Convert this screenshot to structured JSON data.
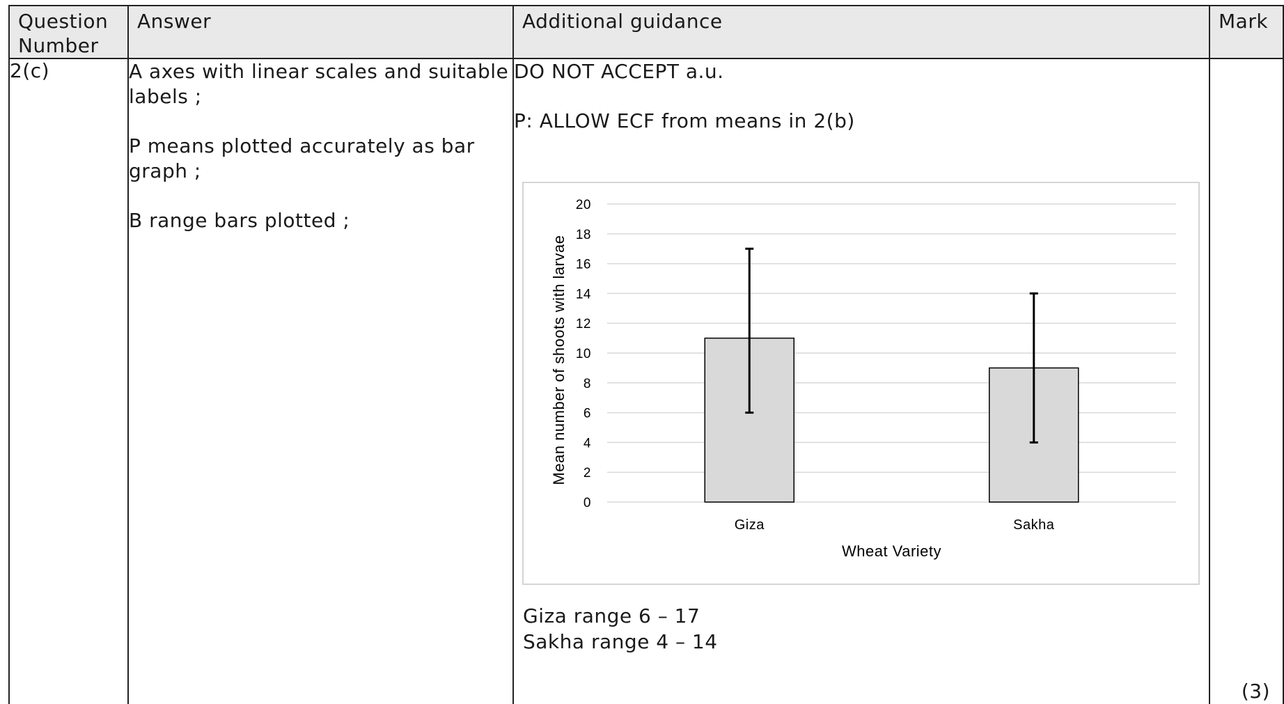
{
  "headers": {
    "question_number": "Question Number",
    "answer": "Answer",
    "guidance": "Additional guidance",
    "mark": "Mark"
  },
  "row": {
    "question_number": "2(c)",
    "answer_points": [
      "A  axes with linear scales and suitable labels ;",
      "P  means plotted accurately as bar graph ;",
      "B  range bars plotted ;"
    ],
    "guidance_1": "DO NOT ACCEPT a.u.",
    "guidance_2": "P: ALLOW ECF from means in 2(b)",
    "range_giza": "Giza range 6 – 17",
    "range_sakha": "Sakha range 4 – 14",
    "mark": "(3)"
  },
  "chart_data": {
    "type": "bar",
    "categories": [
      "Giza",
      "Sakha"
    ],
    "values": [
      11,
      9
    ],
    "error_bars": [
      {
        "low": 6,
        "high": 17
      },
      {
        "low": 4,
        "high": 14
      }
    ],
    "title": "",
    "xlabel": "Wheat Variety",
    "ylabel": "Mean number of shoots with larvae",
    "ylim": [
      0,
      20
    ],
    "yticks": [
      0,
      2,
      4,
      6,
      8,
      10,
      12,
      14,
      16,
      18,
      20
    ],
    "grid": true,
    "colors": {
      "bar_fill": "#d9d9d9",
      "bar_stroke": "#000000",
      "grid": "#d9d9d9",
      "error_bar": "#000000"
    }
  }
}
